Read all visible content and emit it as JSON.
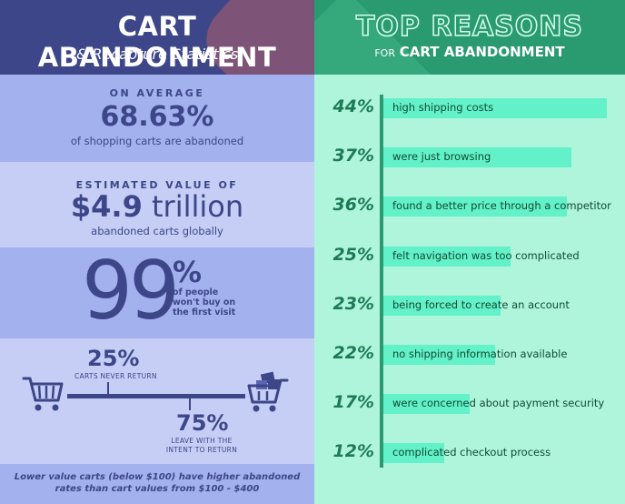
{
  "left": {
    "title": "CART ABANDONMENT",
    "subtitle": "& Recapture Statistics",
    "average": {
      "label": "ON AVERAGE",
      "value": "68.63%",
      "caption": "of shopping carts are abandoned"
    },
    "estimated": {
      "label": "ESTIMATED VALUE OF",
      "value_bold": "$4.9",
      "value_rest": " trillion",
      "caption": "abandoned carts globally"
    },
    "first_visit": {
      "number": "99",
      "sign": "%",
      "caption": "of people won't buy on the first visit"
    },
    "never_return": {
      "value": "25%",
      "caption": "CARTS NEVER RETURN",
      "share": 25
    },
    "return_intent": {
      "value": "75%",
      "caption": "LEAVE WITH THE INTENT TO RETURN",
      "share": 75
    },
    "footnote": "Lower value carts (below $100) have higher abandoned rates than cart values from $100 - $400",
    "colors": {
      "navy": "#3c4688",
      "band_dark": "#a3b1ee",
      "band_light": "#c6cef6"
    },
    "icons": [
      "shopping-cart-icon",
      "full-shopping-cart-icon"
    ]
  },
  "right": {
    "title": "TOP REASONS",
    "subtitle_small": "FOR",
    "subtitle_big": "CART ABANDONMENT",
    "colors": {
      "header": "#2a9a70",
      "bar": "#62f1c8",
      "background": "#aef5dc"
    }
  },
  "chart_data": {
    "type": "bar",
    "orientation": "horizontal",
    "title": "TOP REASONS FOR CART ABANDONMENT",
    "categories": [
      "high shipping costs",
      "were just browsing",
      "found a better price through a competitor",
      "felt navigation was too complicated",
      "being forced to create an account",
      "no shipping information available",
      "were concerned about payment security",
      "complicated checkout process"
    ],
    "values": [
      44,
      37,
      36,
      25,
      23,
      22,
      17,
      12
    ],
    "value_labels": [
      "44%",
      "37%",
      "36%",
      "25%",
      "23%",
      "22%",
      "17%",
      "12%"
    ],
    "unit": "%",
    "xlim": [
      0,
      50
    ],
    "grid": false,
    "legend": "none"
  }
}
